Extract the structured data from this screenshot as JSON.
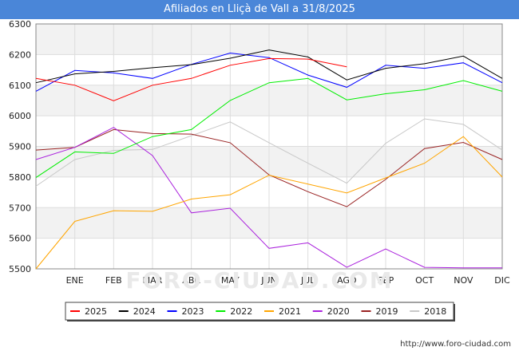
{
  "chart_data": {
    "type": "line",
    "title": "Afiliados en Lliçà de Vall a 31/8/2025",
    "categories": [
      "",
      "ENE",
      "FEB",
      "MAR",
      "ABR",
      "MAY",
      "JUN",
      "JUL",
      "AGO",
      "SEP",
      "OCT",
      "NOV",
      "DIC"
    ],
    "ylim": [
      5500,
      6300
    ],
    "yticks": [
      5500,
      5600,
      5700,
      5800,
      5900,
      6000,
      6100,
      6200,
      6300
    ],
    "grid": true,
    "legend_position": "bottom",
    "series": [
      {
        "name": "2025",
        "color": "#ff0000",
        "values": [
          6122,
          6100,
          6049,
          6100,
          6122,
          6165,
          6187,
          6185,
          6160,
          null,
          null,
          null,
          null
        ]
      },
      {
        "name": "2024",
        "color": "#000000",
        "values": [
          6108,
          6137,
          6145,
          6157,
          6167,
          6188,
          6215,
          6192,
          6117,
          6155,
          6170,
          6195,
          6122
        ]
      },
      {
        "name": "2023",
        "color": "#0000ff",
        "values": [
          6080,
          6148,
          6140,
          6122,
          6168,
          6205,
          6190,
          6133,
          6093,
          6165,
          6155,
          6173,
          6108
        ]
      },
      {
        "name": "2022",
        "color": "#00ee00",
        "values": [
          5798,
          5882,
          5877,
          5932,
          5955,
          6050,
          6108,
          6122,
          6052,
          6072,
          6085,
          6115,
          6080
        ]
      },
      {
        "name": "2021",
        "color": "#ffa500",
        "values": [
          5500,
          5655,
          5690,
          5688,
          5728,
          5742,
          5806,
          5777,
          5748,
          5797,
          5845,
          5932,
          5800
        ]
      },
      {
        "name": "2020",
        "color": "#aa22dd",
        "values": [
          5857,
          5897,
          5962,
          5870,
          5683,
          5698,
          5567,
          5585,
          5505,
          5565,
          5505,
          5503,
          5503
        ]
      },
      {
        "name": "2019",
        "color": "#992222",
        "values": [
          5888,
          5897,
          5955,
          5942,
          5940,
          5912,
          5807,
          5752,
          5703,
          5792,
          5893,
          5913,
          5857
        ]
      },
      {
        "name": "2018",
        "color": "#c8c8c8",
        "values": [
          5770,
          5857,
          5887,
          5890,
          5935,
          5980,
          5912,
          5845,
          5780,
          5910,
          5990,
          5972,
          5888
        ]
      }
    ]
  },
  "watermark": "FORO-CIUDAD.COM",
  "footer_url": "http://www.foro-ciudad.com"
}
